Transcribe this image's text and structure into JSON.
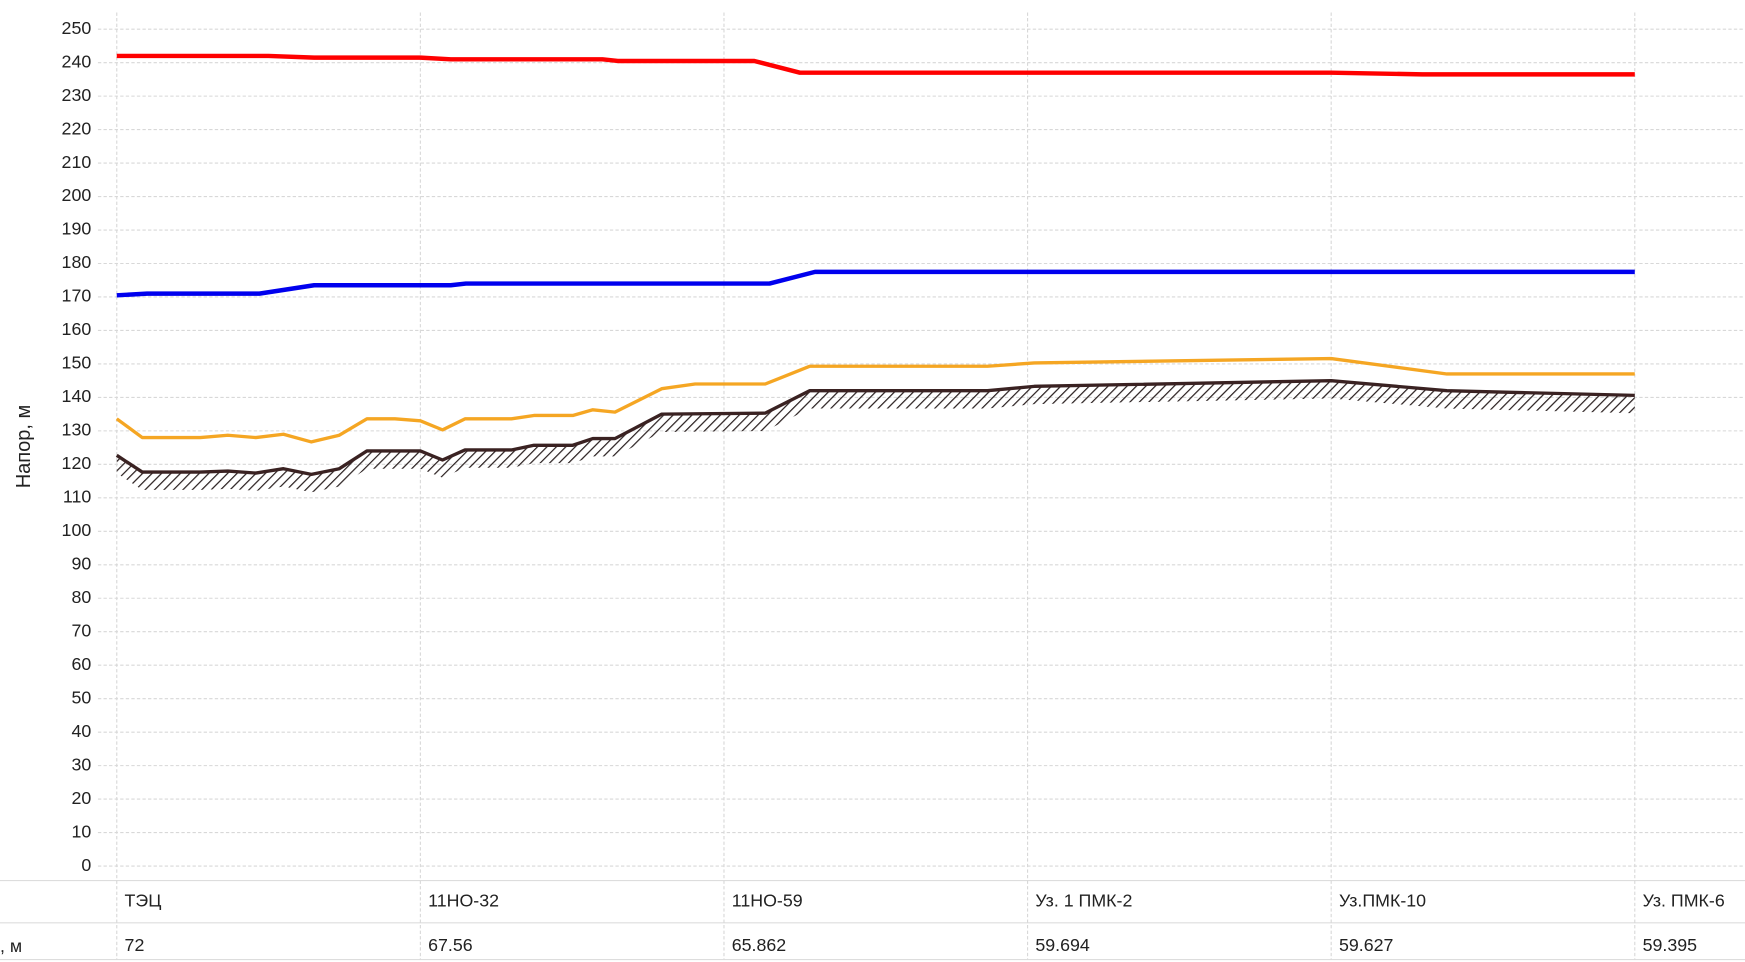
{
  "chart_data": {
    "type": "line",
    "y_label": "Напор, м",
    "xlim": [
      -0.062,
      5.363
    ],
    "xticks": [
      0,
      1,
      2,
      3,
      4,
      5
    ],
    "ylim": [
      0,
      250
    ],
    "yticks": [
      0,
      10,
      20,
      30,
      40,
      50,
      60,
      70,
      80,
      90,
      100,
      110,
      120,
      130,
      140,
      150,
      160,
      170,
      180,
      190,
      200,
      210,
      220,
      230,
      240,
      250
    ],
    "grid": true,
    "series": [
      {
        "color": "#ff0000",
        "width": 4,
        "x": [
          0,
          0.5,
          0.65,
          1.0,
          1.1,
          1.6,
          1.65,
          2.1,
          2.25,
          4.0,
          4.3,
          5.0
        ],
        "values": [
          242,
          242,
          241.5,
          241.5,
          241,
          241,
          240.5,
          240.5,
          237,
          237,
          236.5,
          236.5
        ]
      },
      {
        "color": "#0000ee",
        "width": 4,
        "x": [
          0,
          0.1,
          0.47,
          0.65,
          1.1,
          1.15,
          2.15,
          2.3,
          5.0
        ],
        "values": [
          170.5,
          171,
          171,
          173.5,
          173.5,
          174,
          174,
          177.5,
          177.5
        ]
      },
      {
        "color": "#f5a623",
        "width": 3,
        "x": [
          0,
          0.084,
          0.275,
          0.366,
          0.458,
          0.549,
          0.641,
          0.733,
          0.824,
          0.916,
          1.0,
          1.073,
          1.147,
          1.3,
          1.374,
          1.502,
          1.568,
          1.641,
          1.795,
          1.905,
          2.136,
          2.282,
          2.868,
          3.022,
          4.0,
          4.381,
          5.0
        ],
        "values": [
          133.6,
          128,
          128,
          128.7,
          128,
          129,
          126.7,
          128.7,
          133.6,
          133.6,
          133,
          130.3,
          133.6,
          133.6,
          134.6,
          134.6,
          136.3,
          135.6,
          142.6,
          144,
          144,
          149.3,
          149.3,
          150.3,
          151.6,
          147,
          147
        ]
      },
      {
        "color": "#3a2222",
        "width": 3,
        "hatch": true,
        "x": [
          0,
          0.084,
          0.275,
          0.366,
          0.458,
          0.549,
          0.641,
          0.733,
          0.824,
          1.0,
          1.073,
          1.147,
          1.3,
          1.374,
          1.502,
          1.568,
          1.641,
          1.795,
          2.136,
          2.282,
          2.868,
          3.022,
          4.0,
          4.381,
          5.0
        ],
        "values": [
          122.7,
          117.7,
          117.7,
          118,
          117.4,
          118.7,
          117,
          118.7,
          124,
          124,
          121.3,
          124.3,
          124.3,
          125.7,
          125.7,
          127.7,
          127.7,
          135,
          135.3,
          142,
          142,
          143.3,
          145,
          142,
          140.6
        ]
      }
    ]
  },
  "table": {
    "row_label": ", м",
    "names": [
      "ТЭЦ",
      "11НО-32",
      "11НО-59",
      "Уз. 1 ПМК-2",
      "Уз.ПМК-10",
      "Уз. ПМК-6"
    ],
    "values": [
      72,
      67.56,
      65.862,
      59.694,
      59.627,
      59.395
    ]
  }
}
